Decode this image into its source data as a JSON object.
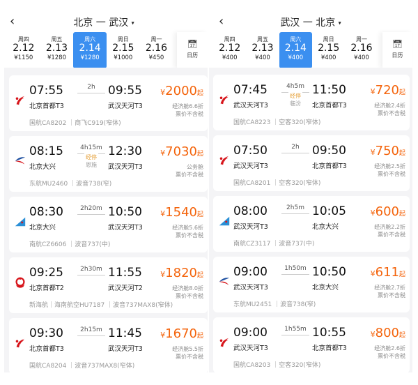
{
  "colors": {
    "accent": "#3b8ff0",
    "price": "#f4640c",
    "background": "#f4f4f6"
  },
  "panels": [
    {
      "title": "北京 一 武汉",
      "calendar_label": "日历",
      "dates": [
        {
          "wk": "周四",
          "dt": "2.12",
          "pr": "¥1150"
        },
        {
          "wk": "周五",
          "dt": "2.13",
          "pr": "¥1280"
        },
        {
          "wk": "周六",
          "dt": "2.14",
          "pr": "¥1280",
          "selected": true
        },
        {
          "wk": "周日",
          "dt": "2.15",
          "pr": "¥1000"
        },
        {
          "wk": "周一",
          "dt": "2.16",
          "pr": "¥450"
        }
      ],
      "flights": [
        {
          "logo": "air-china",
          "dep": "07:55",
          "dep_ap": "北京首都T3",
          "dur": "2h",
          "stop": "",
          "via": "",
          "arr": "09:55",
          "arr_ap": "武汉天河T3",
          "price": "2000",
          "cabin": "经济舱6.6折",
          "tax": "票价不含税",
          "info": "国航CA8202 ｜商飞C919(窄体)"
        },
        {
          "logo": "china-eastern",
          "dep": "08:15",
          "dep_ap": "北京大兴",
          "dur": "4h15m",
          "stop": "经停",
          "via": "恩施",
          "arr": "12:30",
          "arr_ap": "武汉天河T3",
          "price": "7030",
          "cabin": "公务舱",
          "tax": "票价不含税",
          "info": "东航MU2460 ｜波音738(窄)"
        },
        {
          "logo": "china-southern",
          "dep": "08:30",
          "dep_ap": "北京大兴",
          "dur": "2h20m",
          "stop": "",
          "via": "",
          "arr": "10:50",
          "arr_ap": "武汉天河T3",
          "price": "1540",
          "cabin": "经济舱5.6折",
          "tax": "票价不含税",
          "info": "南航CZ6606 ｜波音737(中)"
        },
        {
          "logo": "hainan",
          "dep": "09:25",
          "dep_ap": "北京首都T2",
          "dur": "2h30m",
          "stop": "",
          "via": "",
          "arr": "11:55",
          "arr_ap": "武汉天河T2",
          "price": "1820",
          "cabin": "经济舱8.0折",
          "tax": "票价不含税",
          "info": "新海航｜海南航空HU7187 ｜波音737MAX8(窄体)"
        },
        {
          "logo": "air-china",
          "dep": "09:30",
          "dep_ap": "北京首都T3",
          "dur": "2h15m",
          "stop": "",
          "via": "",
          "arr": "11:45",
          "arr_ap": "武汉天河T3",
          "price": "1670",
          "cabin": "经济舱5.5折",
          "tax": "票价不含税",
          "info": "国航CA8204 ｜波音737MAX8(窄体)"
        }
      ]
    },
    {
      "title": "武汉 一 北京",
      "calendar_label": "日历",
      "dates": [
        {
          "wk": "周四",
          "dt": "2.12",
          "pr": "¥400"
        },
        {
          "wk": "周五",
          "dt": "2.13",
          "pr": "¥400"
        },
        {
          "wk": "周六",
          "dt": "2.14",
          "pr": "¥400",
          "selected": true
        },
        {
          "wk": "周日",
          "dt": "2.15",
          "pr": "¥400"
        },
        {
          "wk": "周一",
          "dt": "2.16",
          "pr": "¥400"
        }
      ],
      "flights": [
        {
          "logo": "air-china",
          "dep": "07:45",
          "dep_ap": "武汉天河T3",
          "dur": "4h5m",
          "stop": "经停",
          "via": "临汾",
          "arr": "11:50",
          "arr_ap": "北京首都T3",
          "price": "720",
          "cabin": "经济舱2.4折",
          "tax": "票价不含税",
          "info": "国航CA8223 ｜空客320(窄体)"
        },
        {
          "logo": "air-china",
          "dep": "07:50",
          "dep_ap": "武汉天河T3",
          "dur": "2h",
          "stop": "",
          "via": "",
          "arr": "09:50",
          "arr_ap": "北京首都T3",
          "price": "750",
          "cabin": "经济舱2.5折",
          "tax": "票价不含税",
          "info": "国航CA8201 ｜空客320(窄体)"
        },
        {
          "logo": "china-southern",
          "dep": "08:00",
          "dep_ap": "武汉天河T3",
          "dur": "2h5m",
          "stop": "",
          "via": "",
          "arr": "10:05",
          "arr_ap": "北京大兴",
          "price": "600",
          "cabin": "经济舱2.2折",
          "tax": "票价不含税",
          "info": "南航CZ3117 ｜波音737(中)"
        },
        {
          "logo": "china-eastern",
          "dep": "09:00",
          "dep_ap": "武汉天河T3",
          "dur": "1h50m",
          "stop": "",
          "via": "",
          "arr": "10:50",
          "arr_ap": "北京大兴",
          "price": "611",
          "cabin": "经济舱2.7折",
          "tax": "票价不含税",
          "info": "东航MU2451 ｜波音738(窄)"
        },
        {
          "logo": "air-china",
          "dep": "09:00",
          "dep_ap": "武汉天河T3",
          "dur": "1h55m",
          "stop": "",
          "via": "",
          "arr": "10:55",
          "arr_ap": "北京首都T3",
          "price": "800",
          "cabin": "经济舱2.6折",
          "tax": "票价不含税",
          "info": "国航CA8203 ｜空客320(窄体)"
        }
      ]
    }
  ],
  "common": {
    "back_icon": "‹",
    "currency": "¥",
    "price_suffix": "起",
    "caret": "▾",
    "calendar_icon": "calendar-icon"
  }
}
